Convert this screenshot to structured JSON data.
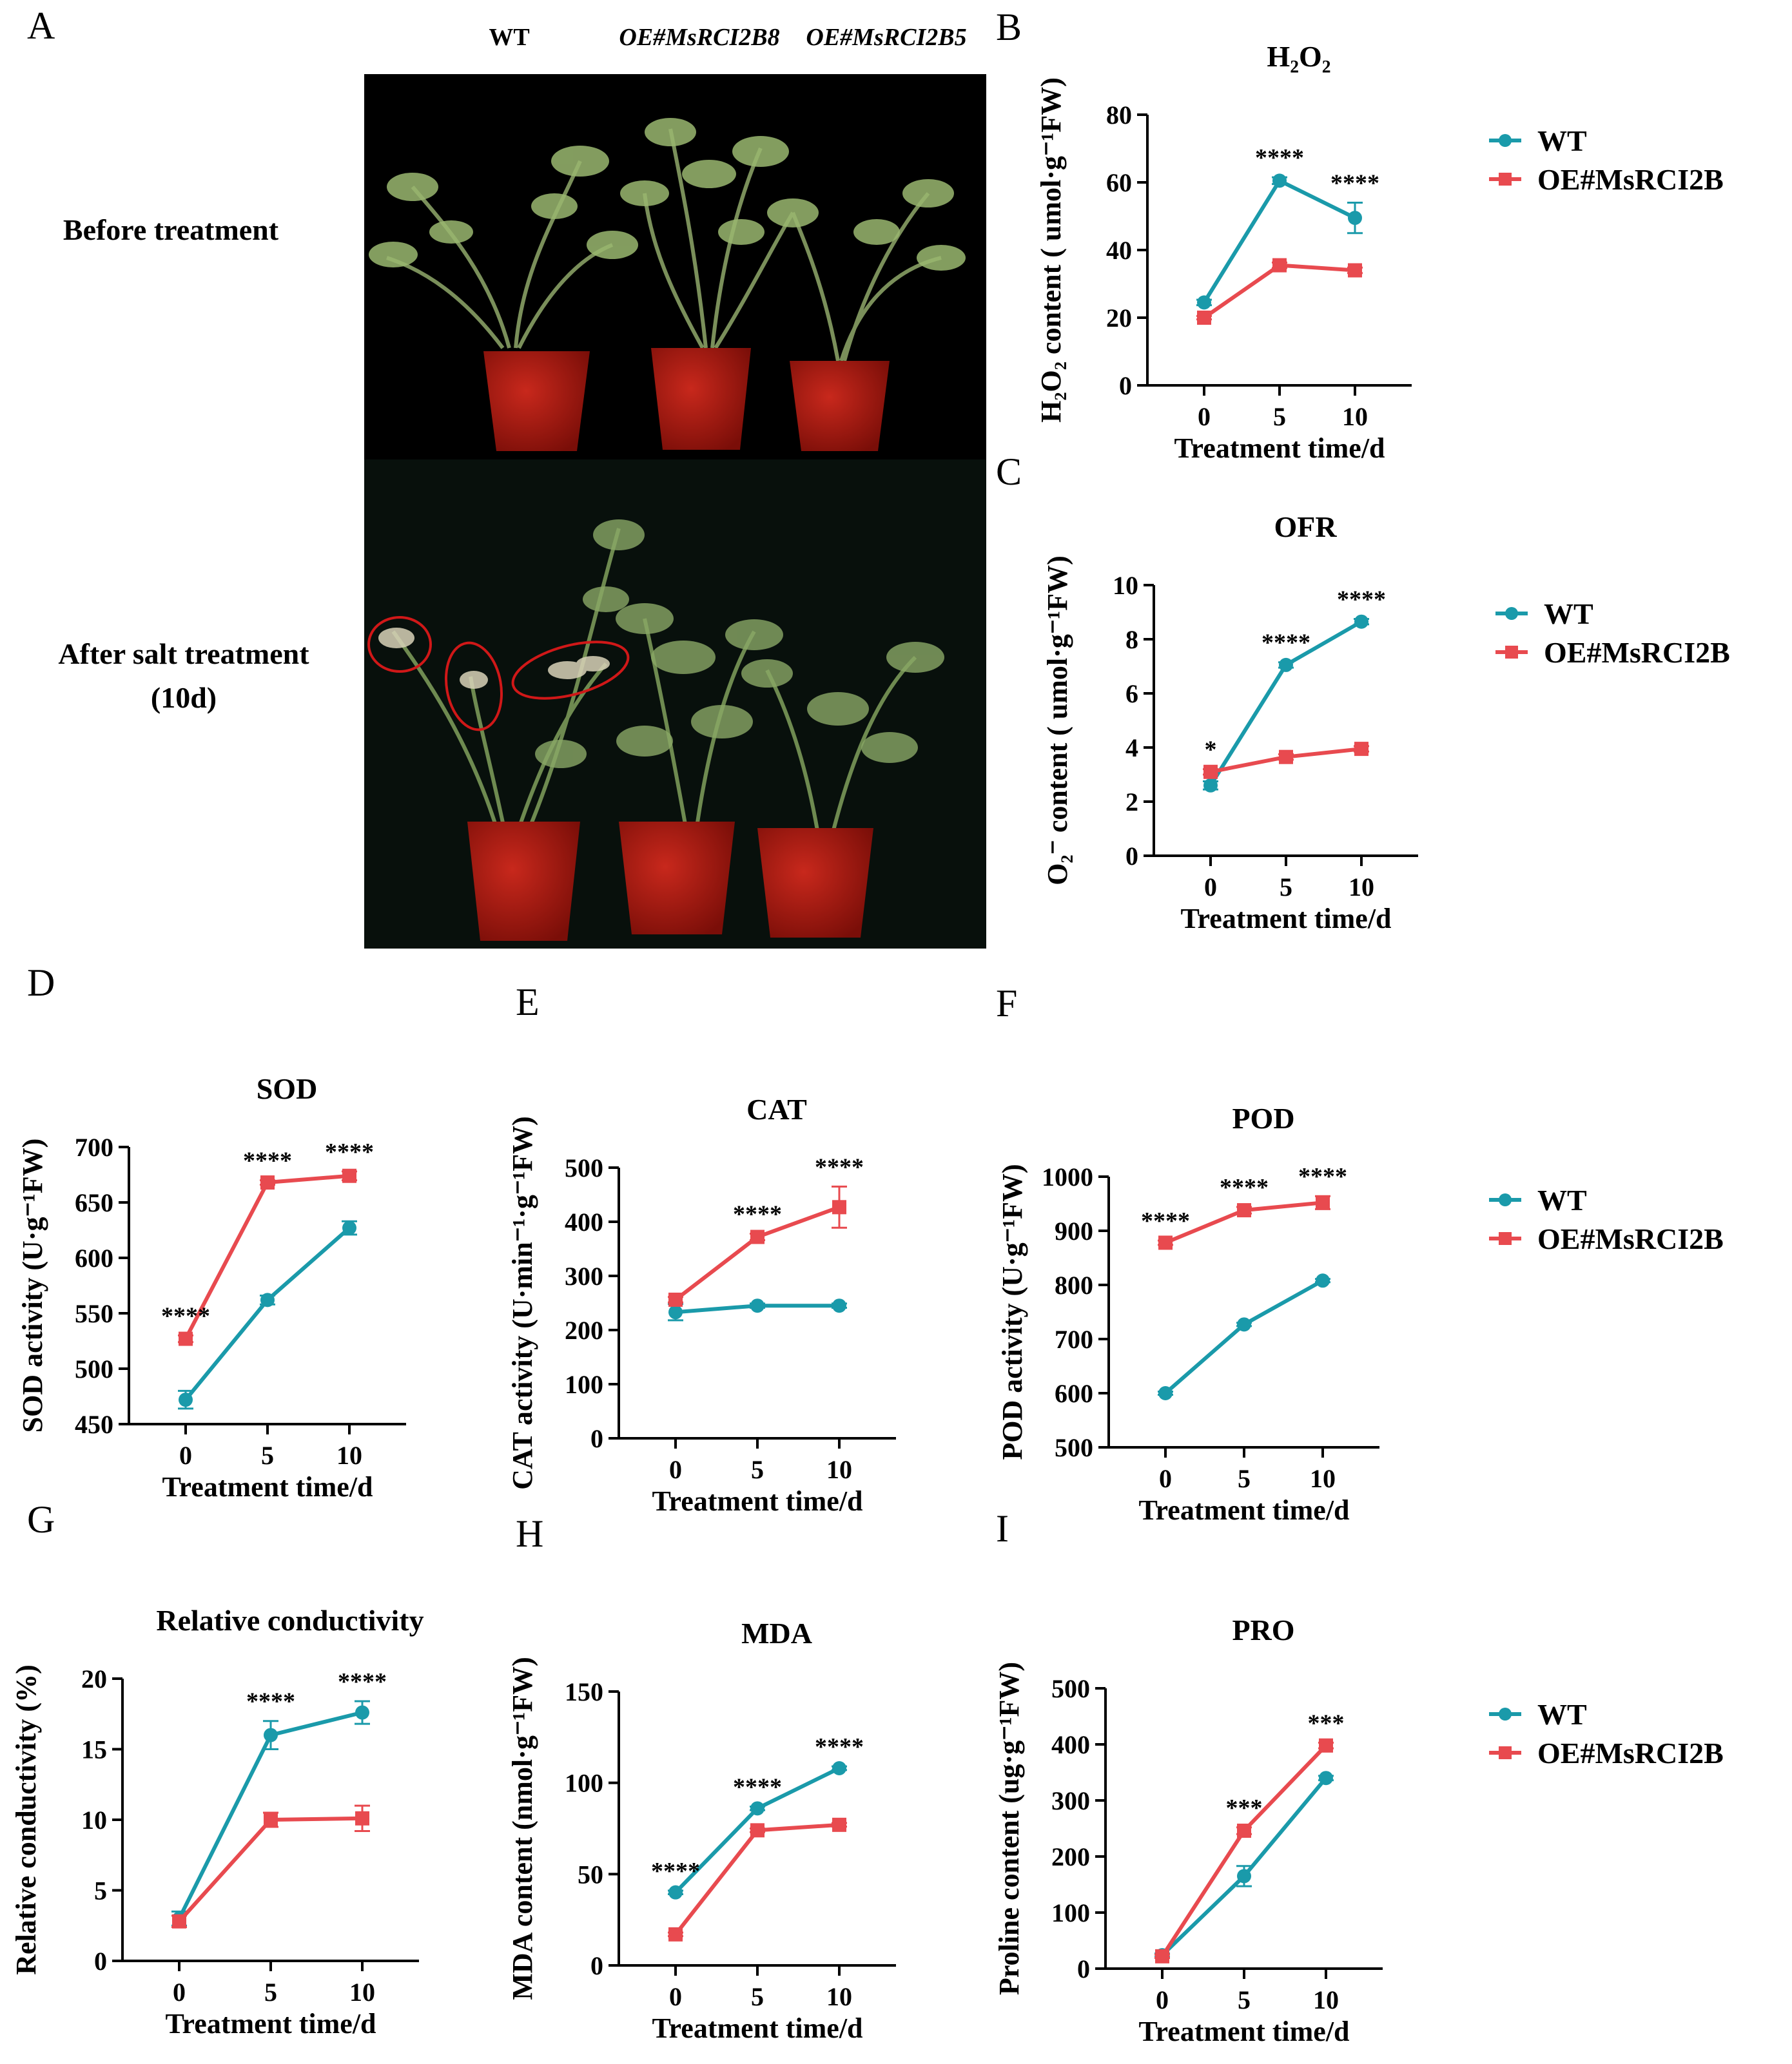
{
  "colors": {
    "wt": "#1a9aaa",
    "oe": "#e84a4f",
    "axis": "#000000"
  },
  "panel_a": {
    "letter": "A",
    "col_wt": "WT",
    "col_oe8": "OE#MsRCI2B8",
    "col_oe5": "OE#MsRCI2B5",
    "row_before": "Before treatment",
    "row_after_1": "After salt treatment",
    "row_after_2": "(10d)"
  },
  "chart_data": [
    {
      "id": "B",
      "letter": "B",
      "type": "line",
      "title": "H₂O₂",
      "xlabel": "Treatment time/d",
      "ylabel": "H₂O₂ content ( umol·g⁻¹FW)",
      "x": [
        0,
        5,
        10
      ],
      "xticks": [
        "0",
        "5",
        "10"
      ],
      "ylim": [
        0,
        80
      ],
      "yticks": [
        0,
        20,
        40,
        60,
        80
      ],
      "series": [
        {
          "name": "WT",
          "values": [
            24.5,
            60.5,
            49.5
          ],
          "err": [
            0.8,
            1.0,
            4.5
          ]
        },
        {
          "name": "OE#MsRCI2B",
          "values": [
            20,
            35.5,
            34
          ],
          "err": [
            0.5,
            0.8,
            0.8
          ]
        }
      ],
      "significance": [
        null,
        "****",
        "****"
      ],
      "legend": true
    },
    {
      "id": "C",
      "letter": "C",
      "type": "line",
      "title": "OFR",
      "xlabel": "Treatment time/d",
      "ylabel": "O₂⁻ content ( umol·g⁻¹FW)",
      "x": [
        0,
        5,
        10
      ],
      "xticks": [
        "0",
        "5",
        "10"
      ],
      "ylim": [
        0,
        10
      ],
      "yticks": [
        0,
        2,
        4,
        6,
        8,
        10
      ],
      "series": [
        {
          "name": "WT",
          "values": [
            2.6,
            7.05,
            8.65
          ],
          "err": [
            0.15,
            0.1,
            0.1
          ]
        },
        {
          "name": "OE#MsRCI2B",
          "values": [
            3.1,
            3.65,
            3.95
          ],
          "err": [
            0.1,
            0.1,
            0.1
          ]
        }
      ],
      "significance": [
        "*",
        "****",
        "****"
      ],
      "legend": true
    },
    {
      "id": "D",
      "letter": "D",
      "type": "line",
      "title": "SOD",
      "xlabel": "Treatment time/d",
      "ylabel": "SOD activity (U·g⁻¹FW)",
      "x": [
        0,
        5,
        10
      ],
      "xticks": [
        "0",
        "5",
        "10"
      ],
      "ylim": [
        450,
        700
      ],
      "yticks": [
        450,
        500,
        550,
        600,
        650,
        700
      ],
      "series": [
        {
          "name": "WT",
          "values": [
            472,
            562,
            627
          ],
          "err": [
            8,
            4,
            6
          ]
        },
        {
          "name": "OE#MsRCI2B",
          "values": [
            527,
            668,
            674
          ],
          "err": [
            3,
            2,
            4
          ]
        }
      ],
      "significance": [
        "****",
        "****",
        "****"
      ],
      "legend": false
    },
    {
      "id": "E",
      "letter": "E",
      "type": "line",
      "title": "CAT",
      "xlabel": "Treatment time/d",
      "ylabel": "CAT activity (U·min⁻¹·g⁻¹FW)",
      "x": [
        0,
        5,
        10
      ],
      "xticks": [
        "0",
        "5",
        "10"
      ],
      "ylim": [
        0,
        500
      ],
      "yticks": [
        0,
        100,
        200,
        300,
        400,
        500
      ],
      "series": [
        {
          "name": "WT",
          "values": [
            233,
            245,
            245
          ],
          "err": [
            15,
            4,
            4
          ]
        },
        {
          "name": "OE#MsRCI2B",
          "values": [
            256,
            372,
            427
          ],
          "err": [
            5,
            6,
            38
          ]
        }
      ],
      "significance": [
        null,
        "****",
        "****"
      ],
      "legend": false
    },
    {
      "id": "F",
      "letter": "F",
      "type": "line",
      "title": "POD",
      "xlabel": "Treatment time/d",
      "ylabel": "POD activity (U·g⁻¹FW)",
      "x": [
        0,
        5,
        10
      ],
      "xticks": [
        "0",
        "5",
        "10"
      ],
      "ylim": [
        500,
        1000
      ],
      "yticks": [
        500,
        600,
        700,
        800,
        900,
        1000
      ],
      "series": [
        {
          "name": "WT",
          "values": [
            600,
            727,
            808
          ],
          "err": [
            3,
            3,
            3
          ]
        },
        {
          "name": "OE#MsRCI2B",
          "values": [
            878,
            938,
            952
          ],
          "err": [
            4,
            6,
            12
          ]
        }
      ],
      "significance": [
        "****",
        "****",
        "****"
      ],
      "legend": true
    },
    {
      "id": "G",
      "letter": "G",
      "type": "line",
      "title": "Relative conductivity",
      "xlabel": "Treatment time/d",
      "ylabel": "Relative conductivity (%)",
      "x": [
        0,
        5,
        10
      ],
      "xticks": [
        "0",
        "5",
        "10"
      ],
      "ylim": [
        0,
        20
      ],
      "yticks": [
        0,
        5,
        10,
        15,
        20
      ],
      "series": [
        {
          "name": "WT",
          "values": [
            3.0,
            16.0,
            17.6
          ],
          "err": [
            0.5,
            1.0,
            0.8
          ]
        },
        {
          "name": "OE#MsRCI2B",
          "values": [
            2.8,
            10.0,
            10.1
          ],
          "err": [
            0.4,
            0.5,
            0.9
          ]
        }
      ],
      "significance": [
        null,
        "****",
        "****"
      ],
      "legend": false
    },
    {
      "id": "H",
      "letter": "H",
      "type": "line",
      "title": "MDA",
      "xlabel": "Treatment time/d",
      "ylabel": "MDA content (nmol·g⁻¹FW)",
      "x": [
        0,
        5,
        10
      ],
      "xticks": [
        "0",
        "5",
        "10"
      ],
      "ylim": [
        0,
        150
      ],
      "yticks": [
        0,
        50,
        100,
        150
      ],
      "series": [
        {
          "name": "WT",
          "values": [
            40,
            86,
            108
          ],
          "err": [
            1,
            1,
            1
          ]
        },
        {
          "name": "OE#MsRCI2B",
          "values": [
            17,
            74,
            77
          ],
          "err": [
            1,
            1,
            1
          ]
        }
      ],
      "significance": [
        "****",
        "****",
        "****"
      ],
      "legend": false
    },
    {
      "id": "I",
      "letter": "I",
      "type": "line",
      "title": "PRO",
      "xlabel": "Treatment time/d",
      "ylabel": "Proline content (ug·g⁻¹FW)",
      "x": [
        0,
        5,
        10
      ],
      "xticks": [
        "0",
        "5",
        "10"
      ],
      "ylim": [
        0,
        500
      ],
      "yticks": [
        0,
        100,
        200,
        300,
        400,
        500
      ],
      "series": [
        {
          "name": "WT",
          "values": [
            24,
            165,
            340
          ],
          "err": [
            3,
            18,
            4
          ]
        },
        {
          "name": "OE#MsRCI2B",
          "values": [
            22,
            246,
            398
          ],
          "err": [
            3,
            6,
            5
          ]
        }
      ],
      "significance": [
        null,
        "***",
        "***"
      ],
      "legend": true
    }
  ]
}
